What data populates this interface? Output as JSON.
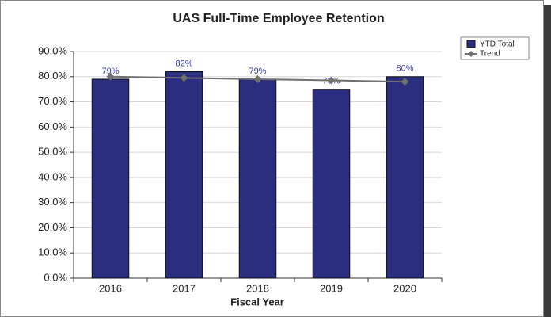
{
  "chart_data": {
    "type": "bar",
    "title": "UAS Full-Time Employee Retention",
    "x_label": "Fiscal Year",
    "categories": [
      "2016",
      "2017",
      "2018",
      "2019",
      "2020"
    ],
    "series": [
      {
        "name": "YTD Total",
        "color": "#2b2d7e",
        "values": [
          79,
          82,
          79,
          75,
          80
        ],
        "value_labels": [
          "79%",
          "82%",
          "79%",
          "75%",
          "80%"
        ]
      },
      {
        "name": "Trend",
        "color": "#707070",
        "values": [
          80,
          79.5,
          79,
          78.5,
          78
        ]
      }
    ],
    "ylim": [
      0,
      90
    ],
    "yticks": [
      {
        "value": 0,
        "label": "0.0%"
      },
      {
        "value": 10,
        "label": "10.0%"
      },
      {
        "value": 20,
        "label": "20.0%"
      },
      {
        "value": 30,
        "label": "30.0%"
      },
      {
        "value": 40,
        "label": "40.0%"
      },
      {
        "value": 50,
        "label": "50.0%"
      },
      {
        "value": 60,
        "label": "60.0%"
      },
      {
        "value": 70,
        "label": "70.0%"
      },
      {
        "value": 80,
        "label": "80.0%"
      },
      {
        "value": 90,
        "label": "90.0%"
      }
    ],
    "grid": true,
    "legend": "upper right"
  }
}
